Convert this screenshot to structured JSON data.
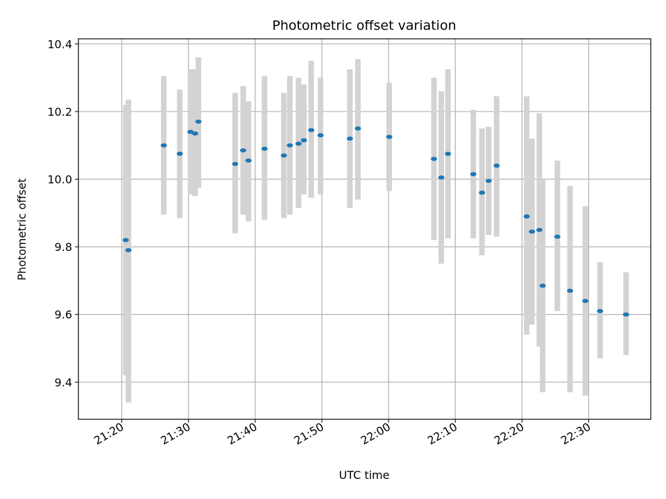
{
  "chart_data": {
    "type": "scatter",
    "title": "Photometric offset variation",
    "xlabel": "UTC time",
    "ylabel": "Photometric offset",
    "xlim": [
      "21:13.5",
      "22:39.3"
    ],
    "ylim": [
      9.29,
      10.415
    ],
    "x_ticks": [
      "21:20",
      "21:30",
      "21:40",
      "21:50",
      "22:00",
      "22:10",
      "22:20",
      "22:30"
    ],
    "y_ticks": [
      "9.4",
      "9.6",
      "9.8",
      "10.0",
      "10.2",
      "10.4"
    ],
    "grid": true,
    "series": [
      {
        "marker_color": "#1f77b4",
        "errorbar_color": "#d3d3d3",
        "points": [
          {
            "t": "21:20.6",
            "y": 9.82,
            "lo": 9.42,
            "hi": 10.22
          },
          {
            "t": "21:21.0",
            "y": 9.79,
            "lo": 9.34,
            "hi": 10.235
          },
          {
            "t": "21:26.3",
            "y": 10.1,
            "lo": 9.895,
            "hi": 10.305
          },
          {
            "t": "21:28.7",
            "y": 10.075,
            "lo": 9.885,
            "hi": 10.265
          },
          {
            "t": "21:30.3",
            "y": 10.14,
            "lo": 9.955,
            "hi": 10.325
          },
          {
            "t": "21:31.0",
            "y": 10.135,
            "lo": 9.95,
            "hi": 10.325
          },
          {
            "t": "21:31.5",
            "y": 10.17,
            "lo": 9.975,
            "hi": 10.36
          },
          {
            "t": "21:37.0",
            "y": 10.045,
            "lo": 9.84,
            "hi": 10.255
          },
          {
            "t": "21:38.2",
            "y": 10.085,
            "lo": 9.895,
            "hi": 10.275
          },
          {
            "t": "21:39.0",
            "y": 10.055,
            "lo": 9.875,
            "hi": 10.23
          },
          {
            "t": "21:41.4",
            "y": 10.09,
            "lo": 9.88,
            "hi": 10.305
          },
          {
            "t": "21:44.3",
            "y": 10.07,
            "lo": 9.885,
            "hi": 10.255
          },
          {
            "t": "21:45.2",
            "y": 10.1,
            "lo": 9.895,
            "hi": 10.305
          },
          {
            "t": "21:46.5",
            "y": 10.105,
            "lo": 9.915,
            "hi": 10.3
          },
          {
            "t": "21:47.3",
            "y": 10.115,
            "lo": 9.955,
            "hi": 10.28
          },
          {
            "t": "21:48.4",
            "y": 10.145,
            "lo": 9.945,
            "hi": 10.35
          },
          {
            "t": "21:49.8",
            "y": 10.13,
            "lo": 9.955,
            "hi": 10.3
          },
          {
            "t": "21:54.2",
            "y": 10.12,
            "lo": 9.915,
            "hi": 10.325
          },
          {
            "t": "21:55.4",
            "y": 10.15,
            "lo": 9.94,
            "hi": 10.355
          },
          {
            "t": "22:00.1",
            "y": 10.125,
            "lo": 9.965,
            "hi": 10.285
          },
          {
            "t": "22:06.8",
            "y": 10.06,
            "lo": 9.82,
            "hi": 10.3
          },
          {
            "t": "22:07.9",
            "y": 10.005,
            "lo": 9.75,
            "hi": 10.26
          },
          {
            "t": "22:08.9",
            "y": 10.075,
            "lo": 9.825,
            "hi": 10.325
          },
          {
            "t": "22:12.7",
            "y": 10.015,
            "lo": 9.825,
            "hi": 10.205
          },
          {
            "t": "22:14.0",
            "y": 9.96,
            "lo": 9.775,
            "hi": 10.15
          },
          {
            "t": "22:15.0",
            "y": 9.995,
            "lo": 9.835,
            "hi": 10.155
          },
          {
            "t": "22:16.2",
            "y": 10.04,
            "lo": 9.83,
            "hi": 10.245
          },
          {
            "t": "22:20.7",
            "y": 9.89,
            "lo": 9.54,
            "hi": 10.245
          },
          {
            "t": "22:21.5",
            "y": 9.845,
            "lo": 9.57,
            "hi": 10.12
          },
          {
            "t": "22:22.6",
            "y": 9.85,
            "lo": 9.505,
            "hi": 10.195
          },
          {
            "t": "22:23.1",
            "y": 9.685,
            "lo": 9.37,
            "hi": 10.0
          },
          {
            "t": "22:25.3",
            "y": 9.83,
            "lo": 9.61,
            "hi": 10.055
          },
          {
            "t": "22:27.2",
            "y": 9.67,
            "lo": 9.37,
            "hi": 9.98
          },
          {
            "t": "22:29.5",
            "y": 9.64,
            "lo": 9.36,
            "hi": 9.92
          },
          {
            "t": "22:31.7",
            "y": 9.61,
            "lo": 9.47,
            "hi": 9.755
          },
          {
            "t": "22:35.6",
            "y": 9.6,
            "lo": 9.48,
            "hi": 9.725
          }
        ]
      }
    ]
  }
}
